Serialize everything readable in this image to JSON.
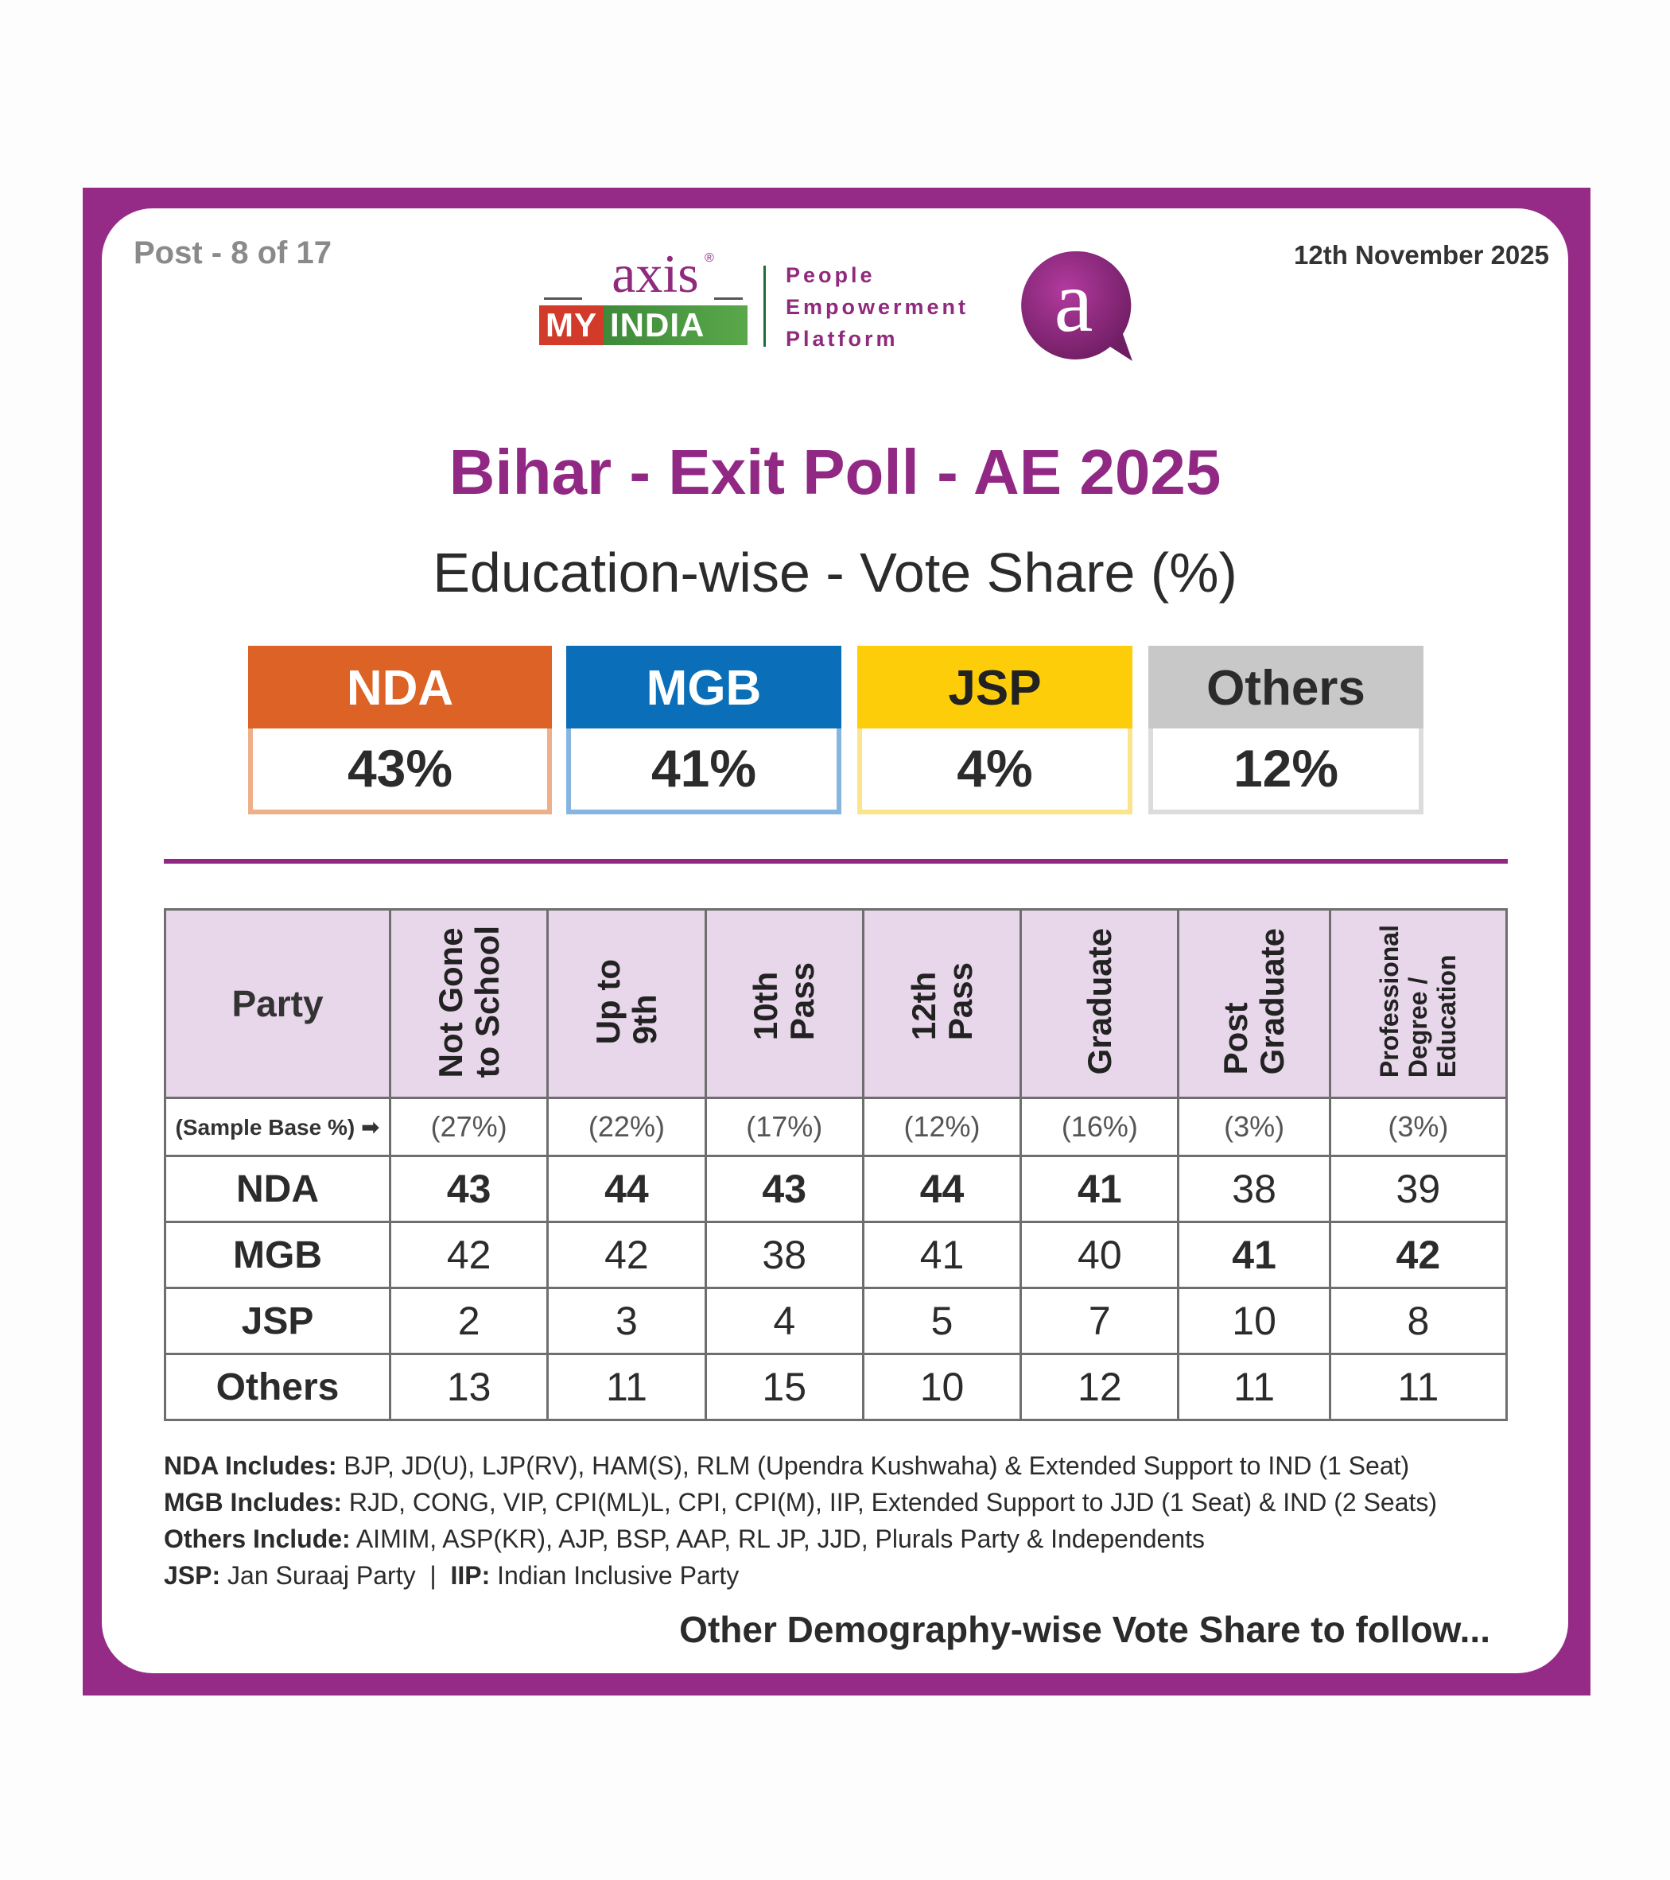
{
  "header": {
    "post_label": "Post - 8 of 17",
    "date": "12th November 2025"
  },
  "logo": {
    "brand_top": "axis",
    "registered": "®",
    "brand_my": "MY",
    "brand_india": "INDIA",
    "tagline": [
      "People",
      "Empowerment",
      "Platform"
    ],
    "bubble_letter": "a"
  },
  "title": "Bihar - Exit Poll - AE 2025",
  "subtitle": "Education-wise - Vote Share (%)",
  "summary": [
    {
      "party": "NDA",
      "value": "43%",
      "head_color": "#dc6225",
      "border_color": "#eeb08a",
      "text_color": "#ffffff"
    },
    {
      "party": "MGB",
      "value": "41%",
      "head_color": "#0a6fb8",
      "border_color": "#86b6e0",
      "text_color": "#ffffff"
    },
    {
      "party": "JSP",
      "value": "4%",
      "head_color": "#fecd0a",
      "border_color": "#fbe48a",
      "text_color": "#222222"
    },
    {
      "party": "Others",
      "value": "12%",
      "head_color": "#c7c8c7",
      "border_color": "#dcdcdc",
      "text_color": "#2b2b2b"
    }
  ],
  "chart_data": {
    "type": "table",
    "title": "Education-wise - Vote Share (%)",
    "row_header": "Party",
    "columns": [
      "Not Gone\nto School",
      "Up to\n9th",
      "10th\nPass",
      "12th\nPass",
      "Graduate",
      "Post\nGraduate",
      "Professional\nDegree /\nEducation"
    ],
    "sample_base_label": "(Sample Base %) ➡",
    "sample_base": [
      "(27%)",
      "(22%)",
      "(17%)",
      "(12%)",
      "(16%)",
      "(3%)",
      "(3%)"
    ],
    "rows": [
      {
        "party": "NDA",
        "values": [
          43,
          44,
          43,
          44,
          41,
          38,
          39
        ],
        "bold": [
          true,
          true,
          true,
          true,
          true,
          false,
          false
        ]
      },
      {
        "party": "MGB",
        "values": [
          42,
          42,
          38,
          41,
          40,
          41,
          42
        ],
        "bold": [
          false,
          false,
          false,
          false,
          false,
          true,
          true
        ]
      },
      {
        "party": "JSP",
        "values": [
          2,
          3,
          4,
          5,
          7,
          10,
          8
        ],
        "bold": [
          false,
          false,
          false,
          false,
          false,
          false,
          false
        ]
      },
      {
        "party": "Others",
        "values": [
          13,
          11,
          15,
          10,
          12,
          11,
          11
        ],
        "bold": [
          false,
          false,
          false,
          false,
          false,
          false,
          false
        ]
      }
    ]
  },
  "notes": [
    {
      "label": "NDA Includes:",
      "text": " BJP, JD(U), LJP(RV), HAM(S), RLM (Upendra Kushwaha) & Extended Support to IND (1 Seat)"
    },
    {
      "label": "MGB Includes:",
      "text": " RJD, CONG, VIP, CPI(ML)L, CPI, CPI(M), IIP, Extended Support to JJD (1 Seat) & IND (2 Seats)"
    },
    {
      "label": "Others Include:",
      "text": " AIMIM, ASP(KR), AJP, BSP, AAP, RL JP, JJD, Plurals Party & Independents"
    }
  ],
  "notes_last": {
    "jsp_label": "JSP:",
    "jsp_text": " Jan Suraaj Party  ",
    "sep": "|",
    "iip_label": "  IIP:",
    "iip_text": " Indian Inclusive Party"
  },
  "footer": "Other Demography-wise Vote Share to follow..."
}
